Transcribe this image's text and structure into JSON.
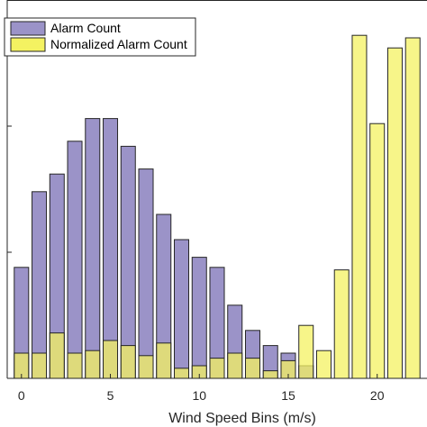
{
  "chart_data": {
    "type": "bar",
    "title": "",
    "xlabel": "Wind Speed Bins (m/s)",
    "ylabel": "",
    "x": [
      0,
      1,
      2,
      3,
      4,
      5,
      6,
      7,
      8,
      9,
      10,
      11,
      12,
      13,
      14,
      15,
      16,
      17,
      18,
      19,
      20,
      21,
      22
    ],
    "xticks": [
      "0",
      "5",
      "10",
      "15",
      "20"
    ],
    "xtick_values": [
      0,
      5,
      10,
      15,
      20
    ],
    "xlim": [
      -0.8,
      22.8
    ],
    "ylim": [
      0,
      1.5
    ],
    "grid": false,
    "legend_position": "top-left",
    "series": [
      {
        "name": "Alarm Count",
        "color": "#9b93c8",
        "values": [
          0.44,
          0.74,
          0.81,
          0.94,
          1.03,
          1.03,
          0.92,
          0.83,
          0.65,
          0.55,
          0.48,
          0.44,
          0.29,
          0.19,
          0.13,
          0.1,
          0.05,
          0.0,
          0.0,
          0.0,
          0.0,
          0.0,
          0.0
        ]
      },
      {
        "name": "Normalized Alarm Count",
        "color": "#f4f261",
        "values": [
          0.1,
          0.1,
          0.18,
          0.1,
          0.11,
          0.15,
          0.13,
          0.09,
          0.14,
          0.04,
          0.05,
          0.08,
          0.1,
          0.08,
          0.03,
          0.07,
          0.21,
          0.11,
          0.43,
          1.36,
          1.01,
          1.31,
          1.35
        ]
      }
    ]
  }
}
